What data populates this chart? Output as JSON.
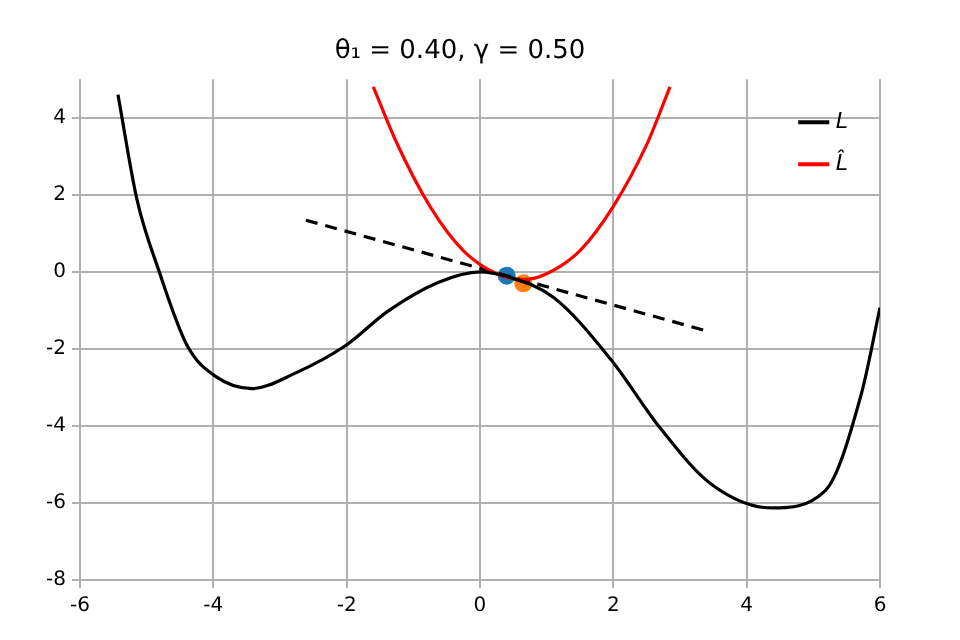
{
  "chart_data": {
    "type": "line",
    "title": "θ₁ = 0.40, γ = 0.50",
    "xlim": [
      -6,
      6
    ],
    "ylim": [
      -8,
      5
    ],
    "xticks": [
      -6,
      -4,
      -2,
      0,
      2,
      4,
      6
    ],
    "yticks": [
      -8,
      -6,
      -4,
      -2,
      0,
      2,
      4
    ],
    "grid": true,
    "legend": "top right",
    "marker": "none",
    "series": [
      {
        "name": "L",
        "color": "#000000",
        "x": [
          -5.43,
          -5.14,
          -4.82,
          -4.39,
          -3.96,
          -3.42,
          -2.77,
          -2.02,
          -1.38,
          -0.62,
          0,
          0.4,
          1.1,
          1.96,
          2.71,
          3.46,
          4.38,
          5.18,
          5.72,
          6
        ],
        "values": [
          4.6,
          1.84,
          0.05,
          -1.92,
          -2.72,
          -3.03,
          -2.63,
          -1.92,
          -1.02,
          -0.27,
          0,
          -0.12,
          -0.66,
          -2.27,
          -4.07,
          -5.5,
          -6.13,
          -5.68,
          -3.17,
          -0.93
        ]
      },
      {
        "name": "L̂",
        "color": "#ff0000",
        "x": [
          -1.6,
          -1.25,
          -0.75,
          -0.25,
          0.25,
          0.65,
          1,
          1.5,
          2,
          2.5,
          2.85
        ],
        "values": [
          4.8,
          3.35,
          1.7,
          0.55,
          -0.05,
          -0.2,
          -0.05,
          0.55,
          1.7,
          3.3,
          4.8
        ]
      },
      {
        "color": "#000000",
        "line_style": "dashed",
        "x": [
          -2.61,
          3.35
        ],
        "values": [
          1.34,
          -1.51
        ]
      },
      {
        "type": "scatter",
        "marker": "circle",
        "color": "#1f77b4",
        "x": [
          0.4
        ],
        "values": [
          -0.1
        ]
      },
      {
        "type": "scatter",
        "marker": "circle",
        "color": "#ff7f0e",
        "x": [
          0.65
        ],
        "values": [
          -0.3
        ]
      }
    ]
  }
}
